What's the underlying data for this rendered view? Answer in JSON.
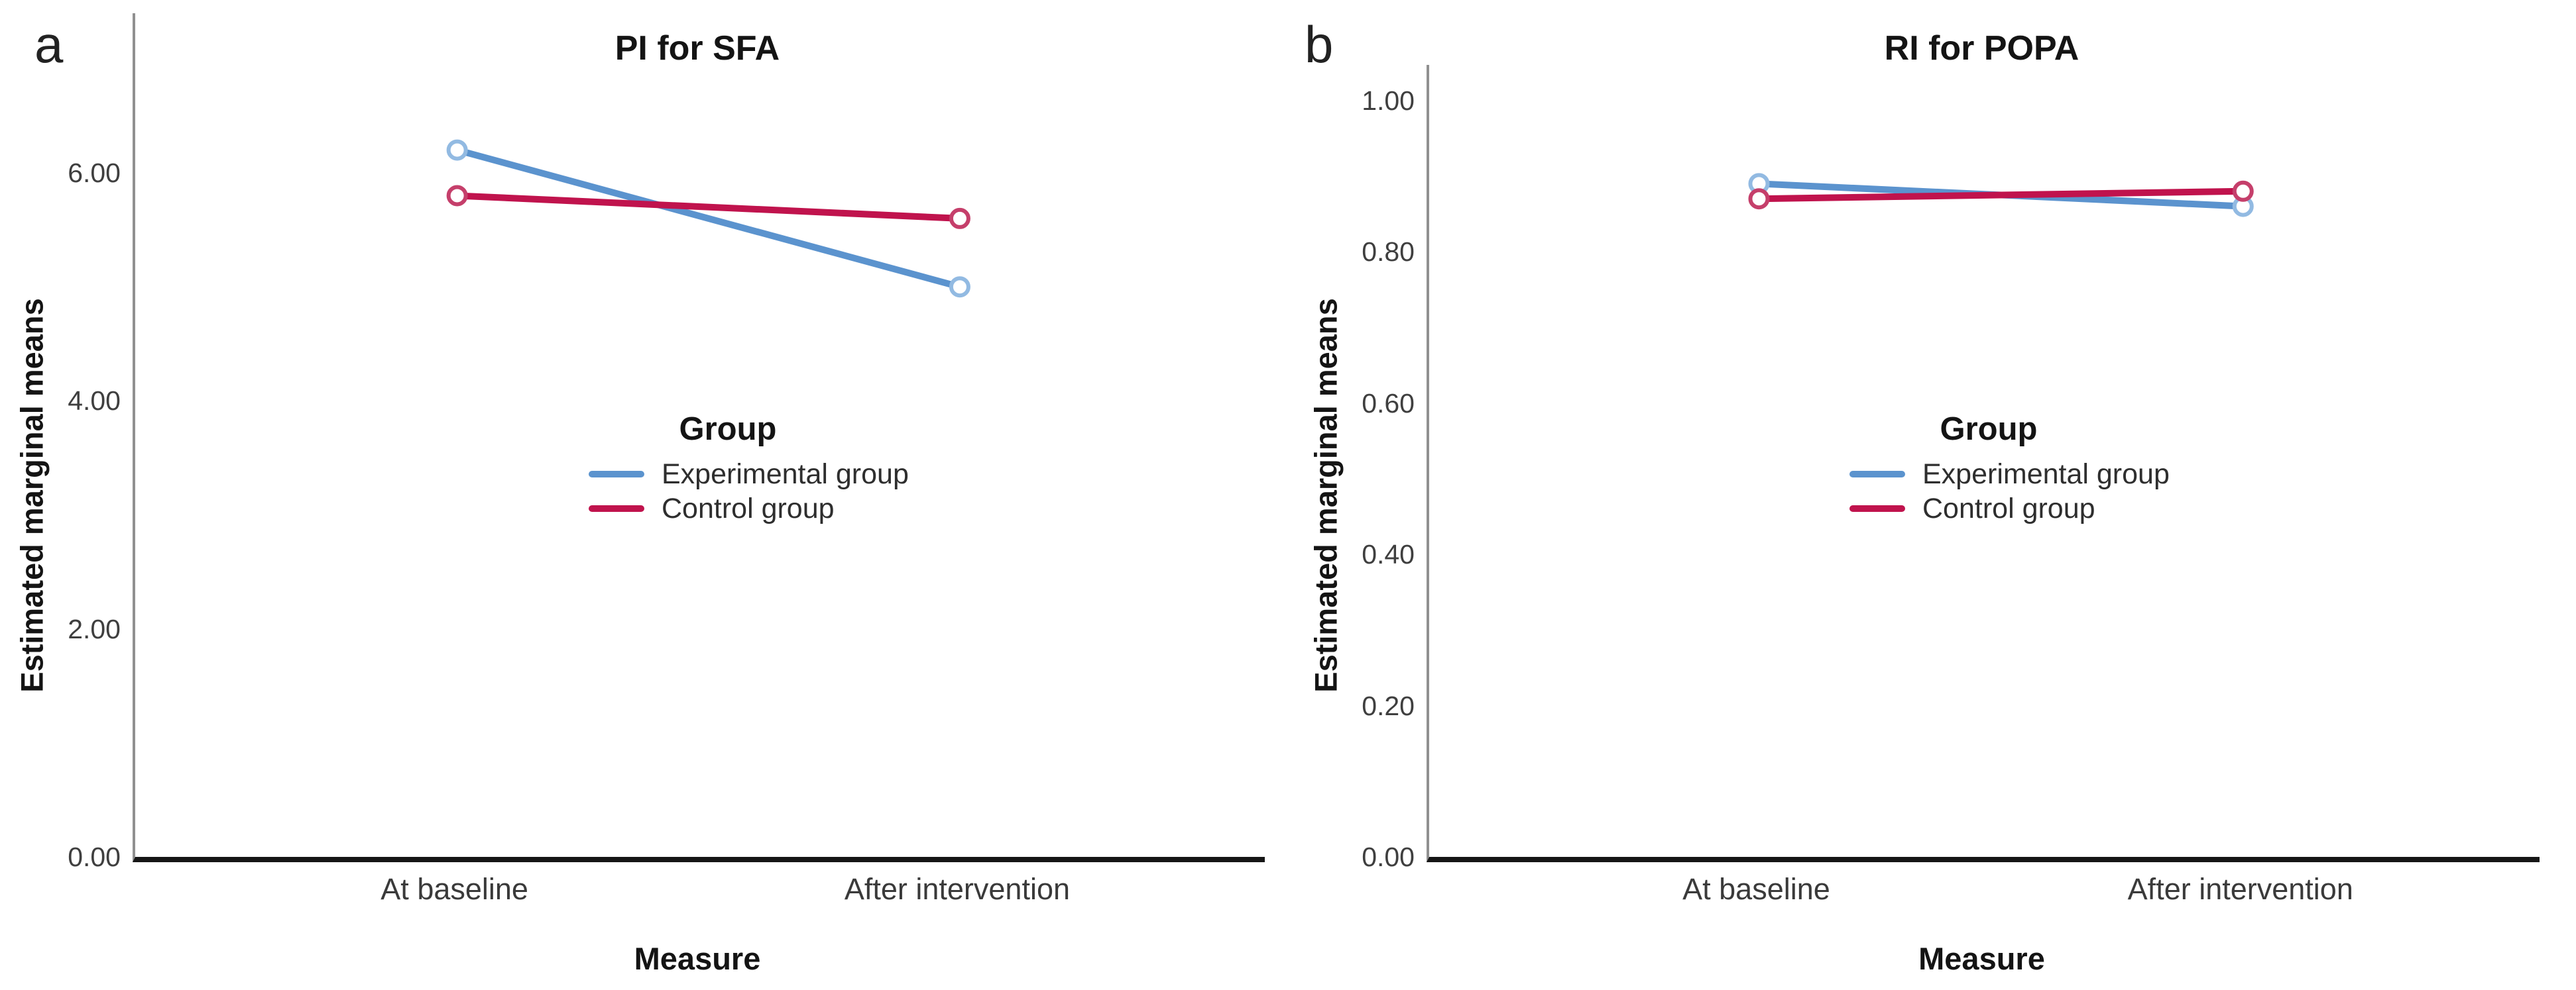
{
  "figure": {
    "background": "#ffffff"
  },
  "colors": {
    "experimental_line": "#5B93CE",
    "experimental_marker": "#92BAE2",
    "control_line": "#C0134D",
    "control_marker": "#C53F6B",
    "x_axis": "#161616",
    "y_axis": "#909090",
    "tick_text": "#3f3f3f",
    "title_text": "#141414"
  },
  "chart_data": [
    {
      "type": "line",
      "panel_letter": "a",
      "title": "PI for SFA",
      "xlabel": "Measure",
      "ylabel": "Estimated marginal means",
      "categories": [
        "At baseline",
        "After intervention"
      ],
      "series": [
        {
          "name": "Experimental group",
          "values": [
            6.2,
            5.0
          ],
          "color": "#5B93CE",
          "marker_color": "#92BAE2"
        },
        {
          "name": "Control group",
          "values": [
            5.8,
            5.6
          ],
          "color": "#C0134D",
          "marker_color": "#C53F6B"
        }
      ],
      "legend_title": "Group",
      "legend_position": "inside-center",
      "ylim": [
        0,
        7.4
      ],
      "yticks": [
        {
          "label": "0.00",
          "value": 0
        },
        {
          "label": "2.00",
          "value": 2
        },
        {
          "label": "4.00",
          "value": 4
        },
        {
          "label": "6.00",
          "value": 6
        }
      ],
      "grid": false
    },
    {
      "type": "line",
      "panel_letter": "b",
      "title": "RI for POPA",
      "xlabel": "Measure",
      "ylabel": "Estimated marginal means",
      "categories": [
        "At baseline",
        "After intervention"
      ],
      "series": [
        {
          "name": "Experimental group",
          "values": [
            0.89,
            0.86
          ],
          "color": "#5B93CE",
          "marker_color": "#92BAE2"
        },
        {
          "name": "Control group",
          "values": [
            0.87,
            0.88
          ],
          "color": "#C0134D",
          "marker_color": "#C53F6B"
        }
      ],
      "legend_title": "Group",
      "legend_position": "inside-center",
      "ylim": [
        0,
        1.047
      ],
      "yticks": [
        {
          "label": "0.00",
          "value": 0
        },
        {
          "label": "0.20",
          "value": 0.2
        },
        {
          "label": "0.40",
          "value": 0.4
        },
        {
          "label": "0.60",
          "value": 0.6
        },
        {
          "label": "0.80",
          "value": 0.8
        },
        {
          "label": "1.00",
          "value": 1.0
        }
      ],
      "grid": false
    }
  ]
}
